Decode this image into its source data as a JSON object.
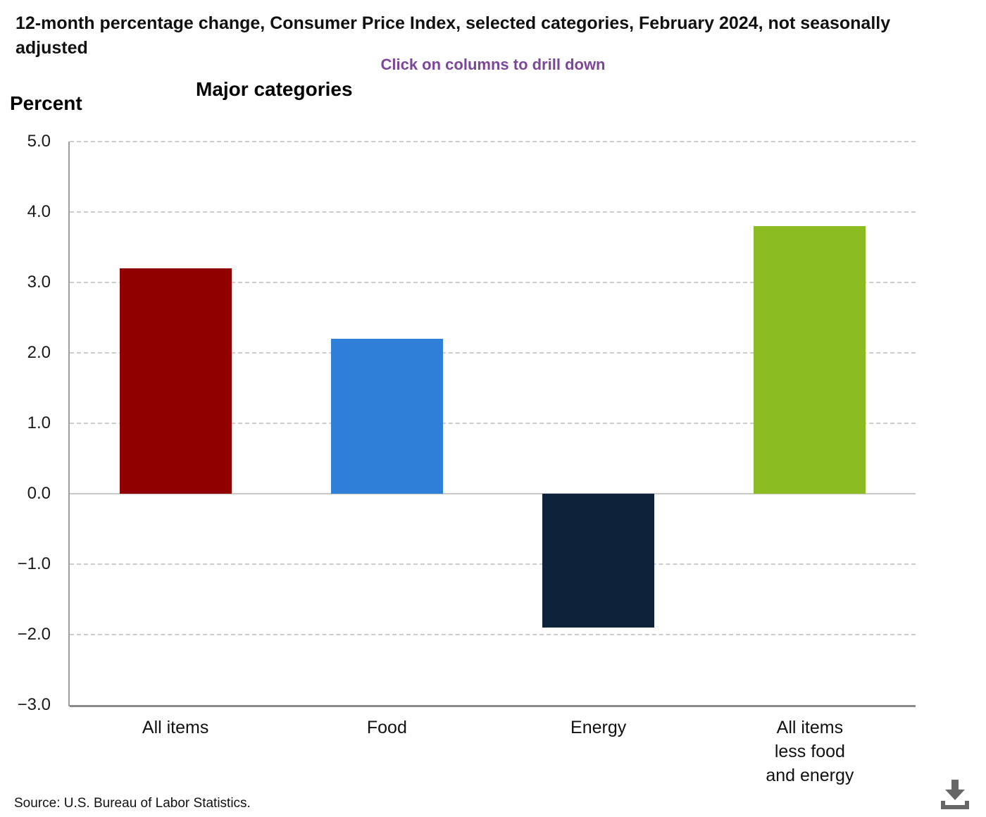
{
  "header": {
    "title": "12-month percentage change, Consumer Price Index, selected categories, February 2024, not seasonally adjusted",
    "drilldown_hint": "Click on columns to drill down",
    "hint_color": "#7d4698"
  },
  "chart_data": {
    "type": "bar",
    "title": "Major categories",
    "ylabel": "Percent",
    "categories": [
      "All items",
      "Food",
      "Energy",
      "All items\nless food\nand energy"
    ],
    "values": [
      3.2,
      2.2,
      -1.9,
      3.8
    ],
    "bar_colors": [
      "#910000",
      "#2f7ed8",
      "#0d233a",
      "#8bbc21"
    ],
    "ylim": [
      -3.0,
      5.0
    ],
    "ytick_values": [
      5,
      4,
      3,
      2,
      1,
      0,
      -1,
      -2,
      -3
    ],
    "ytick_labels": [
      "5.0",
      "4.0",
      "3.0",
      "2.0",
      "1.0",
      "0.0",
      "−1.0",
      "−2.0",
      "−3.0"
    ],
    "grid": "horizontal-dashed",
    "legend": "none"
  },
  "footer": {
    "source": "Source: U.S. Bureau of Labor Statistics.",
    "download_icon": "download-icon"
  }
}
